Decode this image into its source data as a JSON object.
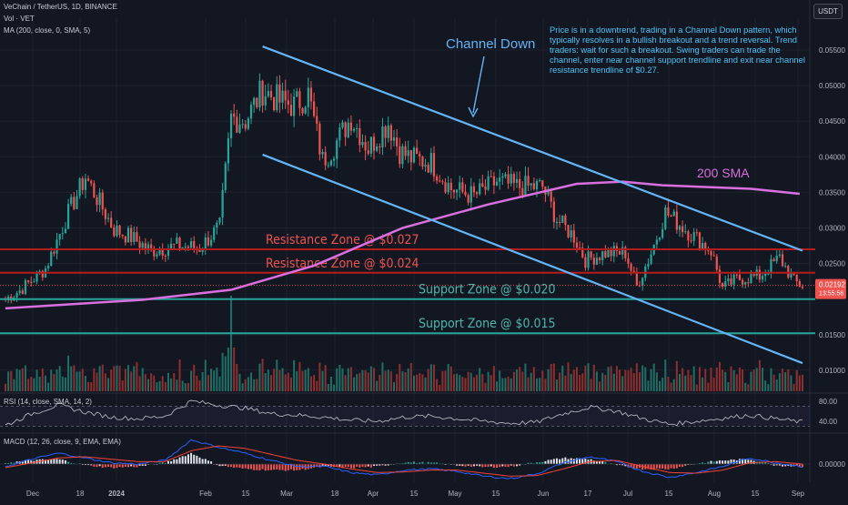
{
  "header": {
    "symbol_line": "VeChain / TetherUS, 1D, BINANCE",
    "vol_line": "Vol · VET",
    "ma_line": "MA (200, close, 0, SMA, 5)",
    "rsi_line": "RSI (14, close, SMA, 14, 2)",
    "macd_line": "MACD (12, 26, close, 9, EMA, EMA)"
  },
  "quote_currency": "USDT",
  "commentary": "Price is in a downtrend, trading in a Channel Down pattern, which typically resolves in a bullish breakout and a trend reversal. Trend traders: wait for such a breakout. Swing traders can trade the channel, enter near channel support trendline and exit near channel resistance trendline of $0.27.",
  "colors": {
    "background": "#131722",
    "up": "#26a69a",
    "down": "#ef5350",
    "channel": "#64b5f6",
    "sma": "#da6fe0",
    "resistance_line": "#b71c1c",
    "resistance_text": "#ef5350",
    "support_line": "#26a69a",
    "support_text": "#4db6ac",
    "rsi": "#b0b3bb",
    "macd": "#2962ff",
    "signal": "#f44336",
    "price_badge": "#ef5350"
  },
  "chart_data": [
    {
      "type": "candlestick",
      "title": "VeChain / TetherUS, 1D, BINANCE",
      "x_ticks": [
        "Dec",
        "18",
        "2024",
        "Feb",
        "15",
        "Mar",
        "18",
        "Apr",
        "15",
        "May",
        "15",
        "Jun",
        "17",
        "Jul",
        "15",
        "Aug",
        "15",
        "Sep"
      ],
      "y_ticks": [
        "0.05500",
        "0.05000",
        "0.04500",
        "0.04000",
        "0.03500",
        "0.03000",
        "0.02500",
        "0.01500",
        "0.01000"
      ],
      "ylim": [
        0.0095,
        0.0573
      ],
      "last_price": "0.02192",
      "countdown": "13:55:56",
      "anchors": [
        {
          "x": "Nov 28",
          "y": 0.02
        },
        {
          "x": "Dec 3",
          "y": 0.0212
        },
        {
          "x": "Dec 12",
          "y": 0.0243
        },
        {
          "x": "Dec 20",
          "y": 0.0321
        },
        {
          "x": "Dec 26",
          "y": 0.0372
        },
        {
          "x": "Dec 31",
          "y": 0.0335
        },
        {
          "x": "Jan 5",
          "y": 0.0298
        },
        {
          "x": "Jan 11",
          "y": 0.0287
        },
        {
          "x": "Jan 18",
          "y": 0.0268
        },
        {
          "x": "Jan 27",
          "y": 0.0275
        },
        {
          "x": "Feb 4",
          "y": 0.0272
        },
        {
          "x": "Feb 11",
          "y": 0.0302
        },
        {
          "x": "Feb 15",
          "y": 0.0455
        },
        {
          "x": "Feb 20",
          "y": 0.0451
        },
        {
          "x": "Feb 26",
          "y": 0.0494
        },
        {
          "x": "Mar 3",
          "y": 0.0478
        },
        {
          "x": "Mar 8",
          "y": 0.0472
        },
        {
          "x": "Mar 13",
          "y": 0.0488
        },
        {
          "x": "Mar 18",
          "y": 0.0395
        },
        {
          "x": "Mar 22",
          "y": 0.0415
        },
        {
          "x": "Mar 28",
          "y": 0.0455
        },
        {
          "x": "Apr 3",
          "y": 0.0412
        },
        {
          "x": "Apr 10",
          "y": 0.0448
        },
        {
          "x": "Apr 14",
          "y": 0.0408
        },
        {
          "x": "Apr 18",
          "y": 0.0398
        },
        {
          "x": "Apr 25",
          "y": 0.0392
        },
        {
          "x": "May 2",
          "y": 0.0355
        },
        {
          "x": "May 10",
          "y": 0.0345
        },
        {
          "x": "May 18",
          "y": 0.0365
        },
        {
          "x": "May 25",
          "y": 0.0358
        },
        {
          "x": "Jun 3",
          "y": 0.0358
        },
        {
          "x": "Jun 8",
          "y": 0.0312
        },
        {
          "x": "Jun 14",
          "y": 0.0288
        },
        {
          "x": "Jun 18",
          "y": 0.0255
        },
        {
          "x": "Jun 25",
          "y": 0.0265
        },
        {
          "x": "Jul 2",
          "y": 0.0265
        },
        {
          "x": "Jul 6",
          "y": 0.0218
        },
        {
          "x": "Jul 11",
          "y": 0.0265
        },
        {
          "x": "Jul 16",
          "y": 0.0322
        },
        {
          "x": "Jul 21",
          "y": 0.0305
        },
        {
          "x": "Jul 26",
          "y": 0.0288
        },
        {
          "x": "Aug 1",
          "y": 0.0268
        },
        {
          "x": "Aug 5",
          "y": 0.0215
        },
        {
          "x": "Aug 10",
          "y": 0.0228
        },
        {
          "x": "Aug 18",
          "y": 0.0232
        },
        {
          "x": "Aug 25",
          "y": 0.0258
        },
        {
          "x": "Aug 30",
          "y": 0.0225
        },
        {
          "x": "Sep 2",
          "y": 0.0219
        }
      ],
      "sma_200": [
        {
          "x": "Nov 28",
          "y": 0.0187
        },
        {
          "x": "Jan 15",
          "y": 0.0199
        },
        {
          "x": "Feb 15",
          "y": 0.0213
        },
        {
          "x": "Mar 15",
          "y": 0.0247
        },
        {
          "x": "Apr 15",
          "y": 0.03
        },
        {
          "x": "May 15",
          "y": 0.0333
        },
        {
          "x": "Jun 15",
          "y": 0.0362
        },
        {
          "x": "Jul 1",
          "y": 0.0365
        },
        {
          "x": "Jul 15",
          "y": 0.036
        },
        {
          "x": "Aug 15",
          "y": 0.0355
        },
        {
          "x": "Sep 1",
          "y": 0.0348
        }
      ],
      "trendlines": [
        {
          "name": "channel-upper",
          "label": "Channel Down",
          "points": [
            {
              "x": "Feb 26",
              "y": 0.0555
            },
            {
              "x": "Sep 2",
              "y": 0.0268
            }
          ]
        },
        {
          "name": "channel-lower",
          "label": "",
          "points": [
            {
              "x": "Feb 26",
              "y": 0.0403
            },
            {
              "x": "Sep 2",
              "y": 0.011
            }
          ]
        }
      ],
      "zones": [
        {
          "label": "Resistance Zone @ $0.027",
          "y": 0.027,
          "kind": "resistance"
        },
        {
          "label": "Resistance Zone @ $0.024",
          "y": 0.0237,
          "kind": "resistance"
        },
        {
          "label": "Support Zone @ $0.020",
          "y": 0.02,
          "kind": "support"
        },
        {
          "label": "Support Zone @ $0.015",
          "y": 0.0152,
          "kind": "support"
        }
      ],
      "annotations": [
        "Channel Down",
        "200 SMA"
      ]
    },
    {
      "type": "line",
      "title": "RSI (14, close, SMA, 14, 2)",
      "y_ticks": [
        "80.00",
        "40.00"
      ],
      "levels": [
        70,
        30
      ],
      "ylim": [
        20,
        85
      ],
      "series": [
        {
          "values": [
            32,
            55,
            72,
            58,
            48,
            45,
            50,
            80,
            72,
            66,
            55,
            52,
            48,
            42,
            40,
            48,
            50,
            45,
            40,
            36,
            38,
            55,
            68,
            60,
            45,
            34,
            40,
            46,
            52,
            45,
            38
          ]
        }
      ]
    },
    {
      "type": "bar",
      "title": "MACD (12, 26, close, 9, EMA, EMA)",
      "y_ticks": [
        "0.00000"
      ],
      "macd": [
        -0.0004,
        0.0008,
        0.0018,
        0.001,
        0.0002,
        0.0,
        0.0006,
        0.004,
        0.0028,
        0.0018,
        0.0006,
        -0.0004,
        -0.0004,
        -0.0014,
        -0.0018,
        -0.001,
        -0.0008,
        -0.0012,
        -0.002,
        -0.0024,
        -0.0016,
        0.0002,
        0.0012,
        0.0004,
        -0.0012,
        -0.0022,
        -0.0014,
        -0.0004,
        0.001,
        0.0002,
        -0.0004
      ],
      "signal": [
        -0.0006,
        0.0002,
        0.001,
        0.0012,
        0.0008,
        0.0004,
        0.0004,
        0.0022,
        0.003,
        0.0026,
        0.0016,
        0.0006,
        0.0,
        -0.0008,
        -0.0014,
        -0.0013,
        -0.001,
        -0.001,
        -0.0015,
        -0.002,
        -0.0019,
        -0.0008,
        0.0004,
        0.0006,
        -0.0004,
        -0.0014,
        -0.0015,
        -0.001,
        0.0002,
        0.0004,
        0.0
      ]
    }
  ]
}
